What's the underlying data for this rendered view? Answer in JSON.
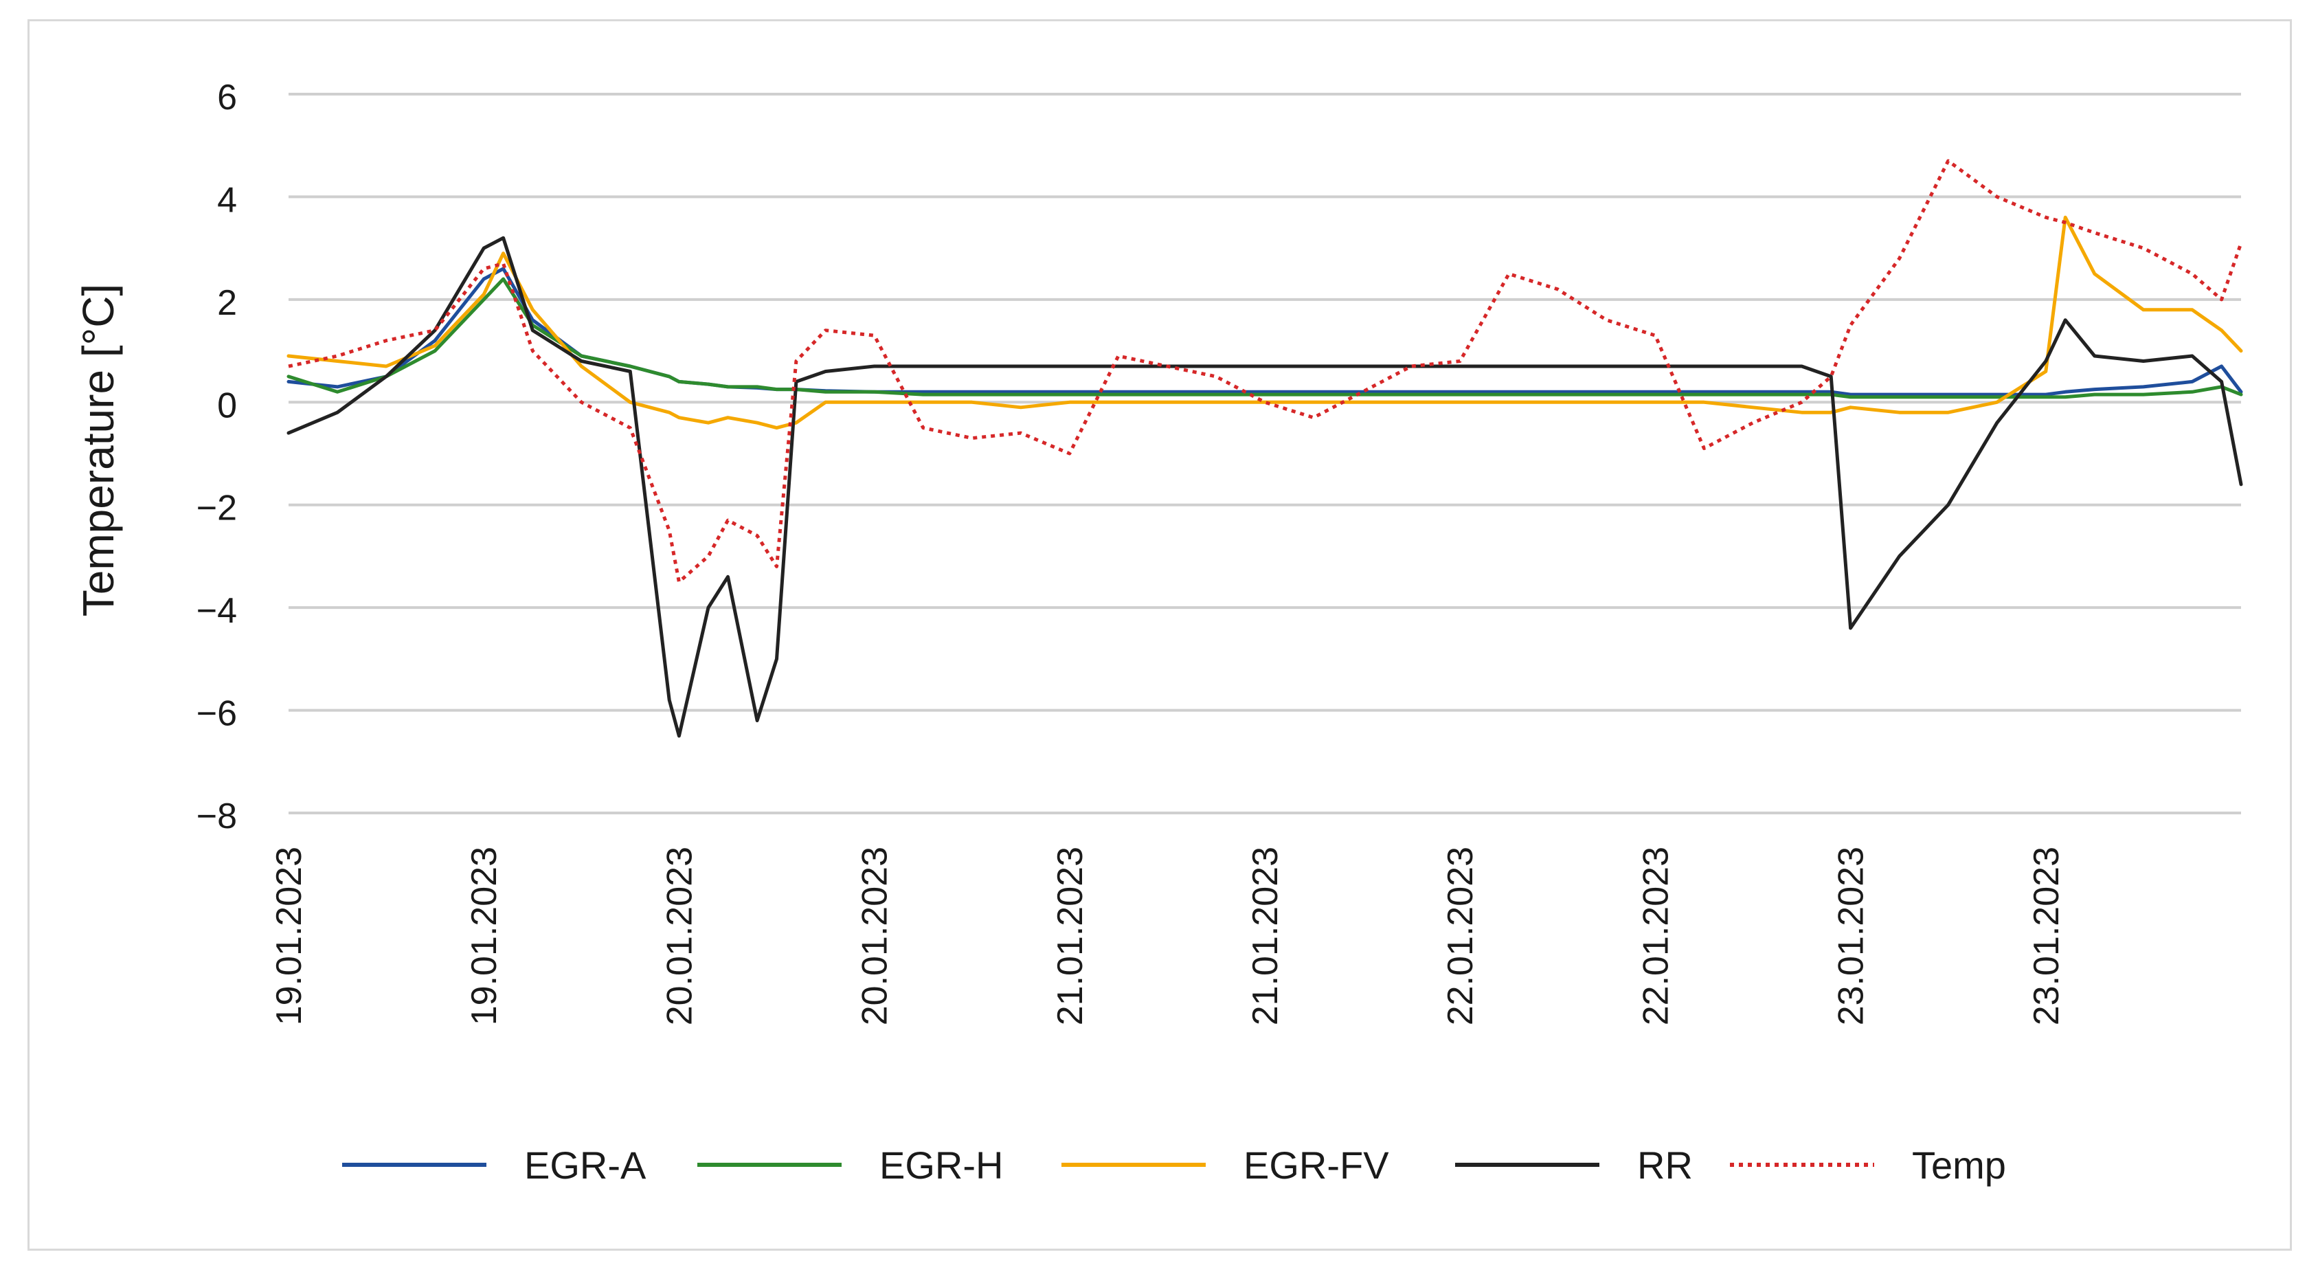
{
  "chart_data": {
    "type": "line",
    "title": "",
    "xlabel": "",
    "ylabel": "Temperature [°C]",
    "ylim": [
      -8,
      6
    ],
    "yticks": [
      6,
      4,
      2,
      0,
      -2,
      -4,
      -6,
      -8
    ],
    "ytick_labels": [
      "6",
      "4",
      "2",
      "0",
      "−2",
      "−4",
      "−6",
      "−8"
    ],
    "xlim": [
      0,
      10
    ],
    "xticks": [
      0,
      1,
      2,
      3,
      4,
      5,
      6,
      7,
      8,
      9,
      10
    ],
    "xtick_labels": [
      "19.01.2023",
      "19.01.2023",
      "20.01.2023",
      "20.01.2023",
      "21.01.2023",
      "21.01.2023",
      "22.01.2023",
      "22.01.2023",
      "23.01.2023",
      "23.01.2023",
      ""
    ],
    "grid": true,
    "legend_position": "bottom",
    "x": [
      0,
      0.25,
      0.5,
      0.75,
      1,
      1.1,
      1.25,
      1.5,
      1.75,
      1.95,
      2,
      2.15,
      2.25,
      2.4,
      2.5,
      2.6,
      2.75,
      3,
      3.25,
      3.5,
      3.75,
      4,
      4.25,
      4.5,
      4.75,
      5,
      5.25,
      5.5,
      5.75,
      6,
      6.25,
      6.5,
      6.75,
      7,
      7.25,
      7.5,
      7.75,
      7.9,
      8,
      8.25,
      8.5,
      8.75,
      9,
      9.1,
      9.25,
      9.5,
      9.75,
      9.9,
      10
    ],
    "series": [
      {
        "name": "EGR-A",
        "color": "#1f4e9c",
        "dashed": false,
        "values": [
          0.4,
          0.3,
          0.5,
          1.2,
          2.4,
          2.6,
          1.6,
          0.9,
          0.7,
          0.5,
          0.4,
          0.35,
          0.3,
          0.28,
          0.25,
          0.25,
          0.22,
          0.2,
          0.2,
          0.2,
          0.2,
          0.2,
          0.2,
          0.2,
          0.2,
          0.2,
          0.2,
          0.2,
          0.2,
          0.2,
          0.2,
          0.2,
          0.2,
          0.2,
          0.2,
          0.2,
          0.2,
          0.2,
          0.15,
          0.15,
          0.15,
          0.15,
          0.15,
          0.2,
          0.25,
          0.3,
          0.4,
          0.7,
          0.2
        ]
      },
      {
        "name": "EGR-H",
        "color": "#2e8b2e",
        "dashed": false,
        "values": [
          0.5,
          0.2,
          0.5,
          1.0,
          2.0,
          2.4,
          1.5,
          0.9,
          0.7,
          0.5,
          0.4,
          0.35,
          0.3,
          0.3,
          0.25,
          0.25,
          0.2,
          0.2,
          0.15,
          0.15,
          0.15,
          0.15,
          0.15,
          0.15,
          0.15,
          0.15,
          0.15,
          0.15,
          0.15,
          0.15,
          0.15,
          0.15,
          0.15,
          0.15,
          0.15,
          0.15,
          0.15,
          0.15,
          0.1,
          0.1,
          0.1,
          0.1,
          0.1,
          0.1,
          0.15,
          0.15,
          0.2,
          0.3,
          0.15
        ]
      },
      {
        "name": "EGR-FV",
        "color": "#f5a800",
        "dashed": false,
        "values": [
          0.9,
          0.8,
          0.7,
          1.1,
          2.1,
          2.9,
          1.8,
          0.7,
          0.0,
          -0.2,
          -0.3,
          -0.4,
          -0.3,
          -0.4,
          -0.5,
          -0.4,
          0.0,
          0.0,
          0.0,
          0.0,
          -0.1,
          0.0,
          0.0,
          0.0,
          0.0,
          0.0,
          0.0,
          0.0,
          0.0,
          0.0,
          0.0,
          0.0,
          0.0,
          0.0,
          0.0,
          -0.1,
          -0.2,
          -0.2,
          -0.1,
          -0.2,
          -0.2,
          0.0,
          0.6,
          3.6,
          2.5,
          1.8,
          1.8,
          1.4,
          1.0
        ]
      },
      {
        "name": "RR",
        "color": "#222222",
        "dashed": false,
        "values": [
          -0.6,
          -0.2,
          0.5,
          1.4,
          3.0,
          3.2,
          1.4,
          0.8,
          0.6,
          -5.8,
          -6.5,
          -4.0,
          -3.4,
          -6.2,
          -5.0,
          0.4,
          0.6,
          0.7,
          0.7,
          0.7,
          0.7,
          0.7,
          0.7,
          0.7,
          0.7,
          0.7,
          0.7,
          0.7,
          0.7,
          0.7,
          0.7,
          0.7,
          0.7,
          0.7,
          0.7,
          0.7,
          0.7,
          0.5,
          -4.4,
          -3.0,
          -2.0,
          -0.4,
          0.8,
          1.6,
          0.9,
          0.8,
          0.9,
          0.4,
          -1.6
        ]
      },
      {
        "name": "Temp",
        "color": "#d62728",
        "dashed": true,
        "values": [
          0.7,
          0.9,
          1.2,
          1.4,
          2.6,
          2.7,
          1.0,
          0.0,
          -0.5,
          -2.5,
          -3.5,
          -3.0,
          -2.3,
          -2.6,
          -3.2,
          0.8,
          1.4,
          1.3,
          -0.5,
          -0.7,
          -0.6,
          -1.0,
          0.9,
          0.7,
          0.5,
          0.0,
          -0.3,
          0.2,
          0.7,
          0.8,
          2.5,
          2.2,
          1.6,
          1.3,
          -0.9,
          -0.4,
          0.0,
          0.5,
          1.5,
          2.8,
          4.7,
          4.0,
          3.6,
          3.5,
          3.3,
          3.0,
          2.5,
          2.0,
          3.1
        ]
      }
    ]
  }
}
